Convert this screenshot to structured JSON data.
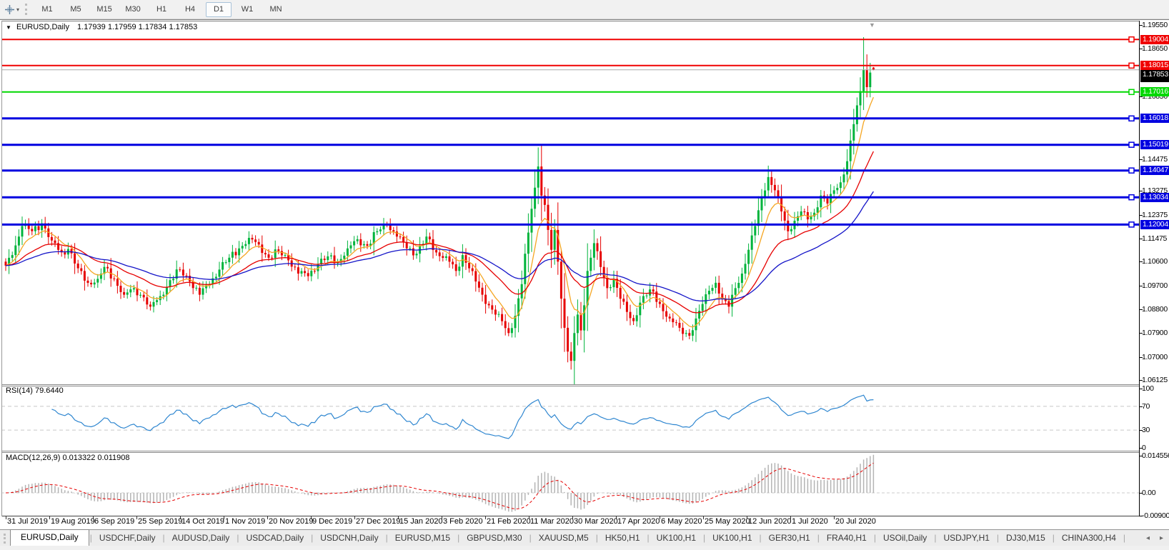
{
  "toolbar": {
    "timeframes": [
      "M1",
      "M5",
      "M15",
      "M30",
      "H1",
      "H4",
      "D1",
      "W1",
      "MN"
    ],
    "active_timeframe": "D1"
  },
  "chart_data": {
    "type": "candlestick",
    "symbol": "EURUSD",
    "timeframe": "Daily",
    "title": "EURUSD,Daily",
    "ohlc_line": "1.17939 1.17959 1.17834 1.17853",
    "bars_total": 265,
    "view": {
      "top_price": 1.1955,
      "bottom_price": 1.06125
    },
    "price_ticks": [
      "1.19550",
      "1.18650",
      "1.16850",
      "1.14475",
      "1.13275",
      "1.12375",
      "1.11475",
      "1.10600",
      "1.09700",
      "1.08800",
      "1.07900",
      "1.07000",
      "1.06125"
    ],
    "current_price": {
      "value": 1.17853,
      "label": "1.17853",
      "line_color": "#ababab",
      "label_bg": "#000000"
    },
    "levels": [
      {
        "price": 1.19004,
        "label": "1.19004",
        "color": "#f00000",
        "width": 2
      },
      {
        "price": 1.18015,
        "label": "1.18015",
        "color": "#f00000",
        "width": 2
      },
      {
        "price": 1.17016,
        "label": "1.17016",
        "color": "#00d800",
        "width": 2
      },
      {
        "price": 1.16018,
        "label": "1.16018",
        "color": "#0000e0",
        "width": 3
      },
      {
        "price": 1.15019,
        "label": "1.15019",
        "color": "#0000e0",
        "width": 3
      },
      {
        "price": 1.14047,
        "label": "1.14047",
        "color": "#0000e0",
        "width": 3
      },
      {
        "price": 1.13034,
        "label": "1.13034",
        "color": "#0000e0",
        "width": 3
      },
      {
        "price": 1.12004,
        "label": "1.12004",
        "color": "#0000e0",
        "width": 3
      }
    ],
    "candle_colors": {
      "up": "#00b43c",
      "down": "#e60000"
    },
    "moving_averages": [
      {
        "name": "fast",
        "period": 8,
        "color": "#f5a623"
      },
      {
        "name": "medium",
        "period": 25,
        "color": "#e60000"
      },
      {
        "name": "slow",
        "period": 50,
        "color": "#1414c8"
      }
    ],
    "close_anchors": [
      [
        0,
        1.1045
      ],
      [
        2,
        1.1085
      ],
      [
        5,
        1.1195
      ],
      [
        8,
        1.1175
      ],
      [
        11,
        1.1205
      ],
      [
        14,
        1.114
      ],
      [
        17,
        1.1095
      ],
      [
        19,
        1.1108
      ],
      [
        22,
        1.1035
      ],
      [
        25,
        1.098
      ],
      [
        28,
        1.0995
      ],
      [
        30,
        1.104
      ],
      [
        33,
        1.0995
      ],
      [
        36,
        1.0935
      ],
      [
        39,
        1.096
      ],
      [
        42,
        1.0925
      ],
      [
        44,
        1.089
      ],
      [
        47,
        1.093
      ],
      [
        50,
        1.099
      ],
      [
        53,
        1.103
      ],
      [
        56,
        1.0985
      ],
      [
        59,
        1.0935
      ],
      [
        62,
        1.0975
      ],
      [
        65,
        1.103
      ],
      [
        68,
        1.1075
      ],
      [
        71,
        1.111
      ],
      [
        74,
        1.115
      ],
      [
        77,
        1.1125
      ],
      [
        80,
        1.1075
      ],
      [
        83,
        1.11
      ],
      [
        86,
        1.1065
      ],
      [
        89,
        1.1015
      ],
      [
        92,
        1.1005
      ],
      [
        95,
        1.105
      ],
      [
        98,
        1.108
      ],
      [
        101,
        1.106
      ],
      [
        104,
        1.111
      ],
      [
        107,
        1.1145
      ],
      [
        110,
        1.112
      ],
      [
        113,
        1.1175
      ],
      [
        116,
        1.12
      ],
      [
        119,
        1.1155
      ],
      [
        122,
        1.111
      ],
      [
        125,
        1.109
      ],
      [
        128,
        1.1155
      ],
      [
        131,
        1.1095
      ],
      [
        134,
        1.108
      ],
      [
        137,
        1.1025
      ],
      [
        139,
        1.1085
      ],
      [
        141,
        1.1035
      ],
      [
        143,
        1.0985
      ],
      [
        145,
        1.0935
      ],
      [
        147,
        1.0895
      ],
      [
        149,
        1.086
      ],
      [
        151,
        1.0835
      ],
      [
        153,
        1.079
      ],
      [
        155,
        1.0855
      ],
      [
        157,
        1.0975
      ],
      [
        158,
        1.109
      ],
      [
        159,
        1.117
      ],
      [
        160,
        1.126
      ],
      [
        161,
        1.134
      ],
      [
        162,
        1.142
      ],
      [
        163,
        1.131
      ],
      [
        164,
        1.1275
      ],
      [
        165,
        1.118
      ],
      [
        166,
        1.1105
      ],
      [
        167,
        1.118
      ],
      [
        168,
        1.106
      ],
      [
        169,
        1.092
      ],
      [
        170,
        1.081
      ],
      [
        171,
        1.072
      ],
      [
        172,
        1.0685
      ],
      [
        173,
        1.079
      ],
      [
        174,
        1.086
      ],
      [
        175,
        1.08
      ],
      [
        176,
        1.0895
      ],
      [
        177,
        1.1025
      ],
      [
        178,
        1.1075
      ],
      [
        179,
        1.113
      ],
      [
        181,
        1.104
      ],
      [
        183,
        1.096
      ],
      [
        185,
        1.0995
      ],
      [
        187,
        1.092
      ],
      [
        189,
        1.087
      ],
      [
        191,
        1.0835
      ],
      [
        193,
        1.0905
      ],
      [
        196,
        1.0955
      ],
      [
        199,
        1.09
      ],
      [
        202,
        1.0845
      ],
      [
        205,
        1.081
      ],
      [
        208,
        1.078
      ],
      [
        210,
        1.0845
      ],
      [
        212,
        1.09
      ],
      [
        214,
        1.095
      ],
      [
        216,
        1.098
      ],
      [
        218,
        1.092
      ],
      [
        220,
        1.089
      ],
      [
        222,
        1.096
      ],
      [
        224,
        1.1015
      ],
      [
        226,
        1.1105
      ],
      [
        228,
        1.1195
      ],
      [
        230,
        1.13
      ],
      [
        232,
        1.138
      ],
      [
        234,
        1.133
      ],
      [
        236,
        1.125
      ],
      [
        238,
        1.1175
      ],
      [
        240,
        1.1215
      ],
      [
        242,
        1.125
      ],
      [
        244,
        1.122
      ],
      [
        246,
        1.1245
      ],
      [
        248,
        1.131
      ],
      [
        250,
        1.128
      ],
      [
        252,
        1.133
      ],
      [
        254,
        1.136
      ],
      [
        256,
        1.144
      ],
      [
        258,
        1.158
      ],
      [
        260,
        1.1705
      ],
      [
        261,
        1.1785
      ],
      [
        262,
        1.172
      ],
      [
        263,
        1.1775
      ],
      [
        264,
        1.17853
      ]
    ],
    "wick_overrides": {
      "153": {
        "low": 1.0778
      },
      "162": {
        "high": 1.1492
      },
      "172": {
        "low": 1.0652
      },
      "261": {
        "high": 1.1909
      },
      "264": {
        "open": 1.17939,
        "high": 1.17959,
        "low": 1.17834
      }
    },
    "rsi": {
      "title": "RSI(14) 79.6440",
      "period": 14,
      "last_value": 79.644,
      "levels": [
        70,
        30
      ],
      "ticks": [
        "100",
        "70",
        "30",
        "0"
      ],
      "tick_values": [
        100,
        70,
        30,
        0
      ],
      "color": "#2e86d0"
    },
    "macd": {
      "title": "MACD(12,26,9) 0.013322 0.011908",
      "fast": 12,
      "slow": 26,
      "signal": 9,
      "last_macd": 0.013322,
      "last_signal": 0.011908,
      "ticks": [
        "0.014556",
        "0.00",
        "-0.00900"
      ],
      "tick_values": [
        0.014556,
        0,
        -0.009
      ],
      "histogram_color": "#b4b4b4",
      "signal_color": "#e60000"
    },
    "x_axis_dates": [
      "31 Jul 2019",
      "19 Aug 2019",
      "6 Sep 2019",
      "25 Sep 2019",
      "14 Oct 2019",
      "1 Nov 2019",
      "20 Nov 2019",
      "9 Dec 2019",
      "27 Dec 2019",
      "15 Jan 2020",
      "3 Feb 2020",
      "21 Feb 2020",
      "11 Mar 2020",
      "30 Mar 2020",
      "17 Apr 2020",
      "6 May 2020",
      "25 May 2020",
      "12 Jun 2020",
      "1 Jul 2020",
      "20 Jul 2020"
    ]
  },
  "tabs": {
    "items": [
      "EURUSD,Daily",
      "USDCHF,Daily",
      "AUDUSD,Daily",
      "USDCAD,Daily",
      "USDCNH,Daily",
      "EURUSD,M15",
      "GBPUSD,M30",
      "XAUUSD,M5",
      "HK50,H1",
      "UK100,H1",
      "UK100,H1",
      "GER30,H1",
      "FRA40,H1",
      "USOil,Daily",
      "USDJPY,H1",
      "DJ30,M15",
      "CHINA300,H4"
    ],
    "active_index": 0,
    "scroll_left": "◂",
    "scroll_right": "▸"
  }
}
